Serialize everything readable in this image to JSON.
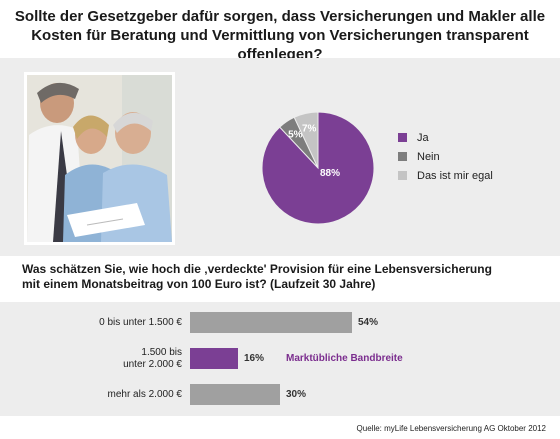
{
  "title": "Sollte der Gesetzgeber dafür sorgen, dass Versicherungen und Makler alle Kosten für Beratung und Vermittlung von Versicherungen transparent offenlegen?",
  "photo": {
    "icon": "photo-family-consultation"
  },
  "chart_data": [
    {
      "type": "pie",
      "title": "Sollte der Gesetzgeber dafür sorgen, dass Versicherungen und Makler alle Kosten für Beratung und Vermittlung von Versicherungen transparent offenlegen?",
      "slices": [
        {
          "label": "Ja",
          "value": 88,
          "display": "88%",
          "color": "#7b3f94"
        },
        {
          "label": "Nein",
          "value": 5,
          "display": "5%",
          "color": "#7d7d7d"
        },
        {
          "label": "Das ist mir egal",
          "value": 7,
          "display": "7%",
          "color": "#c4c4c4"
        }
      ],
      "legend_placement": "right"
    },
    {
      "type": "bar",
      "orientation": "horizontal",
      "title": "Was schätzen Sie, wie hoch die ‚verdeckte' Provision für eine Lebensversicherung mit einem Monatsbeitrag von 100 Euro ist? (Laufzeit 30 Jahre)",
      "categories": [
        "0 bis unter 1.500 €",
        "1.500 bis unter 2.000 €",
        "mehr als 2.000 €"
      ],
      "category_lines": [
        [
          "0 bis unter 1.500 €"
        ],
        [
          "1.500 bis",
          "unter 2.000 €"
        ],
        [
          "mehr als 2.000 €"
        ]
      ],
      "values": [
        54,
        16,
        30
      ],
      "display": [
        "54%",
        "16%",
        "30%"
      ],
      "colors": [
        "#a0a0a0",
        "#7b3f94",
        "#a0a0a0"
      ],
      "xlim": [
        0,
        100
      ],
      "annotation": {
        "category_index": 1,
        "text": "Marktübliche Bandbreite",
        "color": "#7b2d8e"
      }
    }
  ],
  "question2_line1": "Was schätzen Sie, wie hoch die ‚verdeckte' Provision für eine Lebensversicherung",
  "question2_line2": "mit einem Monatsbeitrag von 100 Euro ist? (Laufzeit 30 Jahre)",
  "source": "Quelle: myLife Lebensversicherung AG  Oktober 2012"
}
